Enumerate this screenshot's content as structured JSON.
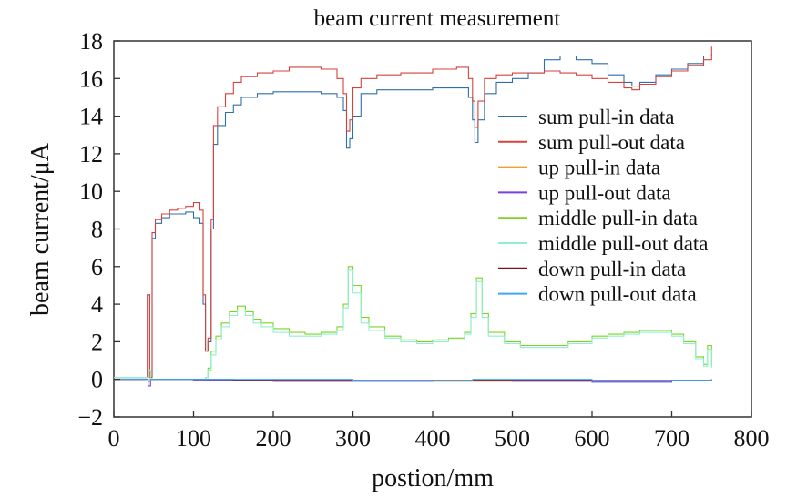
{
  "chart_data": {
    "type": "line",
    "title": "beam current measurement",
    "xlabel": "postion/mm",
    "ylabel": "beam current/μA",
    "xlim": [
      0,
      800
    ],
    "ylim": [
      -2,
      18
    ],
    "xticks": [
      "0",
      "100",
      "200",
      "300",
      "400",
      "500",
      "600",
      "700",
      "800"
    ],
    "yticks": [
      "−2",
      "0",
      "2",
      "4",
      "6",
      "8",
      "10",
      "12",
      "14",
      "16",
      "18"
    ],
    "grid": false,
    "legend_position": "right",
    "series": [
      {
        "name": "sum pull-in data",
        "color": "#2f6fa8",
        "points": [
          [
            0,
            0.1
          ],
          [
            38,
            0.1
          ],
          [
            42,
            4.5
          ],
          [
            45,
            0.1
          ],
          [
            48,
            7.5
          ],
          [
            52,
            8.3
          ],
          [
            60,
            8.6
          ],
          [
            70,
            8.8
          ],
          [
            80,
            8.8
          ],
          [
            90,
            8.9
          ],
          [
            100,
            8.6
          ],
          [
            108,
            8.3
          ],
          [
            112,
            4.0
          ],
          [
            115,
            1.5
          ],
          [
            118,
            2.0
          ],
          [
            122,
            8.0
          ],
          [
            125,
            12.5
          ],
          [
            130,
            13.5
          ],
          [
            140,
            14.2
          ],
          [
            150,
            14.6
          ],
          [
            160,
            15.0
          ],
          [
            180,
            15.2
          ],
          [
            200,
            15.3
          ],
          [
            220,
            15.3
          ],
          [
            240,
            15.3
          ],
          [
            260,
            15.2
          ],
          [
            280,
            15.0
          ],
          [
            288,
            14.3
          ],
          [
            292,
            12.3
          ],
          [
            296,
            12.8
          ],
          [
            300,
            14.0
          ],
          [
            310,
            15.2
          ],
          [
            330,
            15.4
          ],
          [
            360,
            15.4
          ],
          [
            400,
            15.5
          ],
          [
            430,
            15.5
          ],
          [
            445,
            15.0
          ],
          [
            450,
            13.8
          ],
          [
            453,
            12.6
          ],
          [
            457,
            13.8
          ],
          [
            465,
            15.2
          ],
          [
            480,
            15.8
          ],
          [
            500,
            16.0
          ],
          [
            520,
            16.3
          ],
          [
            540,
            17.0
          ],
          [
            560,
            17.2
          ],
          [
            580,
            17.0
          ],
          [
            600,
            16.8
          ],
          [
            620,
            16.2
          ],
          [
            640,
            15.8
          ],
          [
            650,
            15.6
          ],
          [
            660,
            15.8
          ],
          [
            680,
            16.2
          ],
          [
            700,
            16.5
          ],
          [
            720,
            16.8
          ],
          [
            740,
            17.2
          ],
          [
            750,
            17.3
          ]
        ]
      },
      {
        "name": "sum pull-out data",
        "color": "#d6423a",
        "points": [
          [
            0,
            0.1
          ],
          [
            38,
            0.1
          ],
          [
            42,
            4.5
          ],
          [
            45,
            0.1
          ],
          [
            48,
            7.8
          ],
          [
            52,
            8.5
          ],
          [
            60,
            8.8
          ],
          [
            70,
            9.0
          ],
          [
            80,
            9.1
          ],
          [
            90,
            9.2
          ],
          [
            100,
            9.4
          ],
          [
            108,
            9.0
          ],
          [
            112,
            4.5
          ],
          [
            115,
            1.5
          ],
          [
            118,
            2.2
          ],
          [
            122,
            8.5
          ],
          [
            125,
            13.5
          ],
          [
            130,
            14.5
          ],
          [
            140,
            15.2
          ],
          [
            150,
            15.8
          ],
          [
            160,
            16.1
          ],
          [
            180,
            16.3
          ],
          [
            200,
            16.4
          ],
          [
            220,
            16.6
          ],
          [
            240,
            16.6
          ],
          [
            260,
            16.5
          ],
          [
            280,
            16.0
          ],
          [
            288,
            15.2
          ],
          [
            292,
            13.2
          ],
          [
            296,
            13.8
          ],
          [
            300,
            15.5
          ],
          [
            310,
            16.0
          ],
          [
            330,
            16.2
          ],
          [
            360,
            16.3
          ],
          [
            400,
            16.5
          ],
          [
            430,
            16.6
          ],
          [
            445,
            16.0
          ],
          [
            450,
            14.8
          ],
          [
            453,
            13.4
          ],
          [
            457,
            14.8
          ],
          [
            465,
            16.0
          ],
          [
            480,
            16.2
          ],
          [
            500,
            16.3
          ],
          [
            520,
            16.3
          ],
          [
            540,
            16.4
          ],
          [
            560,
            16.3
          ],
          [
            580,
            16.2
          ],
          [
            600,
            16.0
          ],
          [
            620,
            15.8
          ],
          [
            640,
            15.5
          ],
          [
            650,
            15.4
          ],
          [
            660,
            15.7
          ],
          [
            680,
            16.1
          ],
          [
            700,
            16.4
          ],
          [
            720,
            16.7
          ],
          [
            740,
            17.0
          ],
          [
            750,
            17.7
          ]
        ]
      },
      {
        "name": "up pull-in data",
        "color": "#f39c2b",
        "points": [
          [
            0,
            0.0
          ],
          [
            40,
            0.0
          ],
          [
            43,
            -0.1
          ],
          [
            46,
            0.0
          ],
          [
            100,
            -0.05
          ],
          [
            200,
            -0.1
          ],
          [
            300,
            -0.05
          ],
          [
            400,
            -0.1
          ],
          [
            500,
            -0.05
          ],
          [
            600,
            -0.1
          ],
          [
            700,
            -0.05
          ],
          [
            750,
            0.0
          ]
        ]
      },
      {
        "name": "up pull-out data",
        "color": "#7a3fe0",
        "points": [
          [
            0,
            0.0
          ],
          [
            40,
            0.0
          ],
          [
            43,
            -0.35
          ],
          [
            46,
            0.0
          ],
          [
            100,
            -0.05
          ],
          [
            200,
            -0.1
          ],
          [
            300,
            -0.1
          ],
          [
            400,
            -0.05
          ],
          [
            500,
            -0.1
          ],
          [
            600,
            -0.15
          ],
          [
            700,
            -0.05
          ],
          [
            750,
            0.0
          ]
        ]
      },
      {
        "name": "middle pull-in data",
        "color": "#7ed321",
        "points": [
          [
            0,
            0.1
          ],
          [
            40,
            0.1
          ],
          [
            43,
            0.5
          ],
          [
            46,
            0.0
          ],
          [
            110,
            0.0
          ],
          [
            115,
            0.1
          ],
          [
            118,
            0.6
          ],
          [
            122,
            1.5
          ],
          [
            128,
            2.3
          ],
          [
            135,
            3.0
          ],
          [
            145,
            3.6
          ],
          [
            155,
            3.9
          ],
          [
            165,
            3.6
          ],
          [
            175,
            3.2
          ],
          [
            185,
            3.0
          ],
          [
            200,
            2.7
          ],
          [
            220,
            2.5
          ],
          [
            240,
            2.4
          ],
          [
            260,
            2.5
          ],
          [
            280,
            2.8
          ],
          [
            288,
            4.0
          ],
          [
            294,
            6.0
          ],
          [
            300,
            5.0
          ],
          [
            310,
            3.3
          ],
          [
            320,
            2.8
          ],
          [
            340,
            2.3
          ],
          [
            360,
            2.1
          ],
          [
            380,
            2.0
          ],
          [
            400,
            2.1
          ],
          [
            420,
            2.2
          ],
          [
            440,
            2.5
          ],
          [
            448,
            3.5
          ],
          [
            455,
            5.4
          ],
          [
            462,
            3.5
          ],
          [
            470,
            2.5
          ],
          [
            490,
            2.0
          ],
          [
            510,
            1.8
          ],
          [
            540,
            1.8
          ],
          [
            570,
            2.0
          ],
          [
            600,
            2.3
          ],
          [
            620,
            2.4
          ],
          [
            640,
            2.5
          ],
          [
            660,
            2.6
          ],
          [
            680,
            2.6
          ],
          [
            700,
            2.4
          ],
          [
            715,
            2.0
          ],
          [
            730,
            1.2
          ],
          [
            740,
            0.8
          ],
          [
            745,
            1.8
          ],
          [
            750,
            0.7
          ]
        ]
      },
      {
        "name": "middle pull-out data",
        "color": "#8ff0d0",
        "points": [
          [
            0,
            0.1
          ],
          [
            40,
            0.1
          ],
          [
            43,
            0.5
          ],
          [
            46,
            0.0
          ],
          [
            110,
            0.0
          ],
          [
            115,
            0.1
          ],
          [
            118,
            0.5
          ],
          [
            122,
            1.3
          ],
          [
            128,
            2.1
          ],
          [
            135,
            2.8
          ],
          [
            145,
            3.4
          ],
          [
            155,
            3.7
          ],
          [
            165,
            3.4
          ],
          [
            175,
            3.0
          ],
          [
            185,
            2.8
          ],
          [
            200,
            2.5
          ],
          [
            220,
            2.3
          ],
          [
            240,
            2.3
          ],
          [
            260,
            2.4
          ],
          [
            280,
            2.6
          ],
          [
            288,
            3.8
          ],
          [
            294,
            5.8
          ],
          [
            300,
            4.6
          ],
          [
            310,
            3.0
          ],
          [
            320,
            2.6
          ],
          [
            340,
            2.2
          ],
          [
            360,
            2.0
          ],
          [
            380,
            1.9
          ],
          [
            400,
            2.0
          ],
          [
            420,
            2.1
          ],
          [
            440,
            2.4
          ],
          [
            448,
            3.3
          ],
          [
            455,
            5.2
          ],
          [
            462,
            3.3
          ],
          [
            470,
            2.3
          ],
          [
            490,
            1.9
          ],
          [
            510,
            1.7
          ],
          [
            540,
            1.7
          ],
          [
            570,
            1.9
          ],
          [
            600,
            2.2
          ],
          [
            620,
            2.3
          ],
          [
            640,
            2.4
          ],
          [
            660,
            2.5
          ],
          [
            680,
            2.5
          ],
          [
            700,
            2.3
          ],
          [
            715,
            1.9
          ],
          [
            730,
            1.1
          ],
          [
            740,
            0.7
          ],
          [
            745,
            1.6
          ],
          [
            750,
            0.6
          ]
        ]
      },
      {
        "name": "down pull-in data",
        "color": "#7b1020",
        "points": [
          [
            0,
            0.0
          ],
          [
            40,
            0.0
          ],
          [
            43,
            -0.1
          ],
          [
            46,
            0.0
          ],
          [
            150,
            -0.05
          ],
          [
            300,
            -0.05
          ],
          [
            450,
            -0.05
          ],
          [
            600,
            -0.05
          ],
          [
            750,
            0.0
          ]
        ]
      },
      {
        "name": "down pull-out data",
        "color": "#3fa9f5",
        "points": [
          [
            0,
            0.0
          ],
          [
            40,
            0.0
          ],
          [
            43,
            -0.1
          ],
          [
            46,
            0.0
          ],
          [
            150,
            0.0
          ],
          [
            300,
            -0.05
          ],
          [
            450,
            0.0
          ],
          [
            600,
            -0.05
          ],
          [
            750,
            0.0
          ]
        ]
      }
    ]
  }
}
